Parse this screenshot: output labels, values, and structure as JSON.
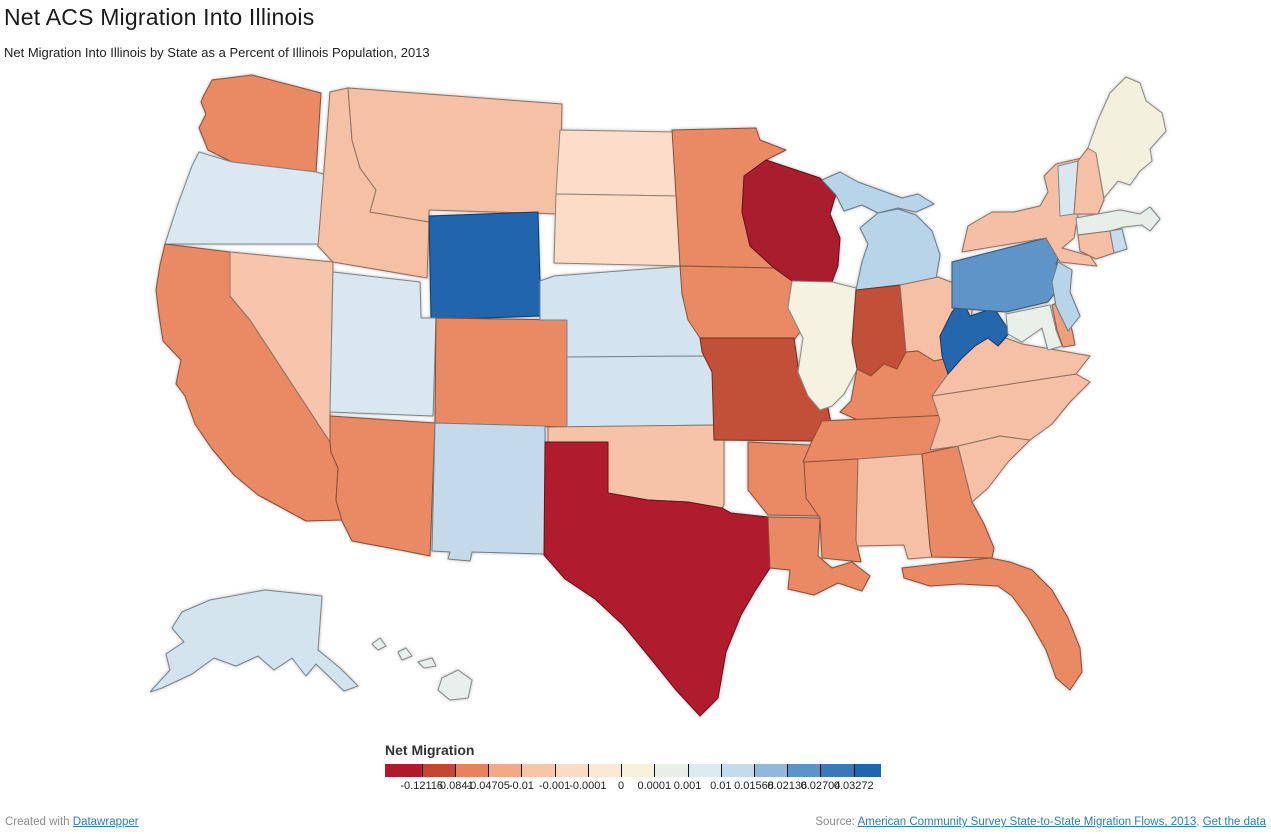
{
  "header": {
    "title": "Net ACS Migration Into Illinois",
    "subtitle": "Net Migration Into Illinois by State as a Percent of Illinois Population, 2013"
  },
  "legend": {
    "title": "Net Migration",
    "ticks": [
      {
        "label": "-0.12115",
        "pos": 7.4
      },
      {
        "label": "-0.0841",
        "pos": 14.1
      },
      {
        "label": "-0.04705",
        "pos": 20.8
      },
      {
        "label": "-0.01",
        "pos": 27.5
      },
      {
        "label": "-0.001",
        "pos": 34.2
      },
      {
        "label": "-0.0001",
        "pos": 40.9
      },
      {
        "label": "0",
        "pos": 47.6
      },
      {
        "label": "0.0001",
        "pos": 54.3
      },
      {
        "label": "0.001",
        "pos": 61.0
      },
      {
        "label": "0.01",
        "pos": 67.7
      },
      {
        "label": "0.01568",
        "pos": 74.4
      },
      {
        "label": "0.02136",
        "pos": 81.1
      },
      {
        "label": "0.02704",
        "pos": 87.8
      },
      {
        "label": "0.03272",
        "pos": 94.5
      }
    ],
    "segments": [
      {
        "color": "#b2182b",
        "to": 7.4
      },
      {
        "color": "#c44532",
        "to": 14.1
      },
      {
        "color": "#e8825c",
        "to": 20.8
      },
      {
        "color": "#f2a987",
        "to": 27.5
      },
      {
        "color": "#f7c6aa",
        "to": 34.2
      },
      {
        "color": "#fadbc6",
        "to": 40.9
      },
      {
        "color": "#fbe9d8",
        "to": 47.6
      },
      {
        "color": "#f5f1dd",
        "to": 54.3
      },
      {
        "color": "#e9efe7",
        "to": 61.0
      },
      {
        "color": "#dcebf2",
        "to": 67.7
      },
      {
        "color": "#c3dbed",
        "to": 74.4
      },
      {
        "color": "#8fb8db",
        "to": 81.1
      },
      {
        "color": "#5e93c7",
        "to": 87.8
      },
      {
        "color": "#3a78b6",
        "to": 94.5
      },
      {
        "color": "#2166ac",
        "to": 100
      }
    ]
  },
  "map": {
    "states": {
      "WA": {
        "name": "Washington",
        "color": "#e98a64"
      },
      "OR": {
        "name": "Oregon",
        "color": "#d9e8f1"
      },
      "CA": {
        "name": "California",
        "color": "#e98a64"
      },
      "NV": {
        "name": "Nevada",
        "color": "#f6c5ab"
      },
      "ID": {
        "name": "Idaho",
        "color": "#f5c0a4"
      },
      "MT": {
        "name": "Montana",
        "color": "#f5c0a4"
      },
      "WY": {
        "name": "Wyoming",
        "color": "#2166ac"
      },
      "UT": {
        "name": "Utah",
        "color": "#d8e7f0"
      },
      "CO": {
        "name": "Colorado",
        "color": "#e98a64"
      },
      "AZ": {
        "name": "Arizona",
        "color": "#e98a64"
      },
      "NM": {
        "name": "New Mexico",
        "color": "#c4d9ea"
      },
      "ND": {
        "name": "North Dakota",
        "color": "#fbddc9"
      },
      "SD": {
        "name": "South Dakota",
        "color": "#fbdcc7"
      },
      "NE": {
        "name": "Nebraska",
        "color": "#d3e3ef"
      },
      "KS": {
        "name": "Kansas",
        "color": "#d3e3ef"
      },
      "OK": {
        "name": "Oklahoma",
        "color": "#f6c3a8"
      },
      "TX": {
        "name": "Texas",
        "color": "#b11b2e"
      },
      "MN": {
        "name": "Minnesota",
        "color": "#e98a64"
      },
      "IA": {
        "name": "Iowa",
        "color": "#e98a64"
      },
      "MO": {
        "name": "Missouri",
        "color": "#c24f38"
      },
      "AR": {
        "name": "Arkansas",
        "color": "#e98a64"
      },
      "LA": {
        "name": "Louisiana",
        "color": "#e98a64"
      },
      "WI": {
        "name": "Wisconsin",
        "color": "#a91d2e"
      },
      "IL": {
        "name": "Illinois",
        "color": "#f6f2e1"
      },
      "MI": {
        "name": "Michigan",
        "color": "#b7d4e9"
      },
      "IN": {
        "name": "Indiana",
        "color": "#c24f38"
      },
      "OH": {
        "name": "Ohio",
        "color": "#f5c0a6"
      },
      "KY": {
        "name": "Kentucky",
        "color": "#ea8a64"
      },
      "TN": {
        "name": "Tennessee",
        "color": "#ea8a64"
      },
      "MS": {
        "name": "Mississippi",
        "color": "#ea8a64"
      },
      "AL": {
        "name": "Alabama",
        "color": "#f5c0a6"
      },
      "GA": {
        "name": "Georgia",
        "color": "#ea8a64"
      },
      "FL": {
        "name": "Florida",
        "color": "#ea8a64"
      },
      "SC": {
        "name": "South Carolina",
        "color": "#f5c0a6"
      },
      "NC": {
        "name": "North Carolina",
        "color": "#f5c0a6"
      },
      "VA": {
        "name": "Virginia",
        "color": "#f5c0a6"
      },
      "WV": {
        "name": "West Virginia",
        "color": "#2467ad"
      },
      "MD": {
        "name": "Maryland",
        "color": "#e9efe9"
      },
      "DE": {
        "name": "Delaware",
        "color": "#ef9f7b"
      },
      "PA": {
        "name": "Pennsylvania",
        "color": "#5e94c7"
      },
      "NJ": {
        "name": "New Jersey",
        "color": "#b7d4e9"
      },
      "NY": {
        "name": "New York",
        "color": "#f5bfa5"
      },
      "CT": {
        "name": "Connecticut",
        "color": "#f5bfa5"
      },
      "RI": {
        "name": "Rhode Island",
        "color": "#c8dcea"
      },
      "MA": {
        "name": "Massachusetts",
        "color": "#e7eeea"
      },
      "VT": {
        "name": "Vermont",
        "color": "#d8e7f0"
      },
      "NH": {
        "name": "New Hampshire",
        "color": "#f5c0a6"
      },
      "ME": {
        "name": "Maine",
        "color": "#f4f0de"
      },
      "AK": {
        "name": "Alaska",
        "color": "#d4e4ee"
      },
      "HI": {
        "name": "Hawaii",
        "color": "#e8efec"
      }
    }
  },
  "footer": {
    "created_with": "Created with ",
    "datawrapper_link": "Datawrapper",
    "source_prefix": "Source: ",
    "source_link": "American Community Survey State-to-State Migration Flows, 2013",
    "separator": ", ",
    "get_data_link": "Get the data"
  }
}
